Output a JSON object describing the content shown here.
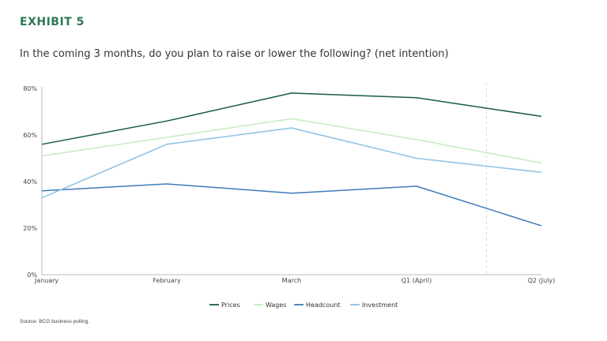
{
  "header": {
    "exhibit": "EXHIBIT 5",
    "question": "In the coming 3 months, do you plan to raise or lower the following? (net intention)"
  },
  "footer": {
    "source": "Source: BCG business polling."
  },
  "colors": {
    "accent": "#2a7a50"
  },
  "chart_data": {
    "type": "line",
    "title": "",
    "xlabel": "",
    "ylabel": "",
    "categories": [
      "January",
      "February",
      "March",
      "Q1 (April)",
      "Q2 (July)"
    ],
    "ylim": [
      0,
      80
    ],
    "yticks": [
      "0%",
      "20%",
      "40%",
      "60%",
      "80%"
    ],
    "grid": false,
    "legend_position": "bottom",
    "series": [
      {
        "name": "Prices",
        "color": "#1a5c3a",
        "values": [
          56,
          66,
          78,
          76,
          68
        ]
      },
      {
        "name": "Wages",
        "color": "#c5ecc0",
        "values": [
          51,
          59,
          67,
          58,
          48
        ]
      },
      {
        "name": "Headcount",
        "color": "#3e7ab8",
        "values": [
          36,
          39,
          35,
          38,
          21
        ]
      },
      {
        "name": "Investment",
        "color": "#8fc0e0",
        "values": [
          33,
          56,
          63,
          50,
          44
        ]
      }
    ]
  }
}
